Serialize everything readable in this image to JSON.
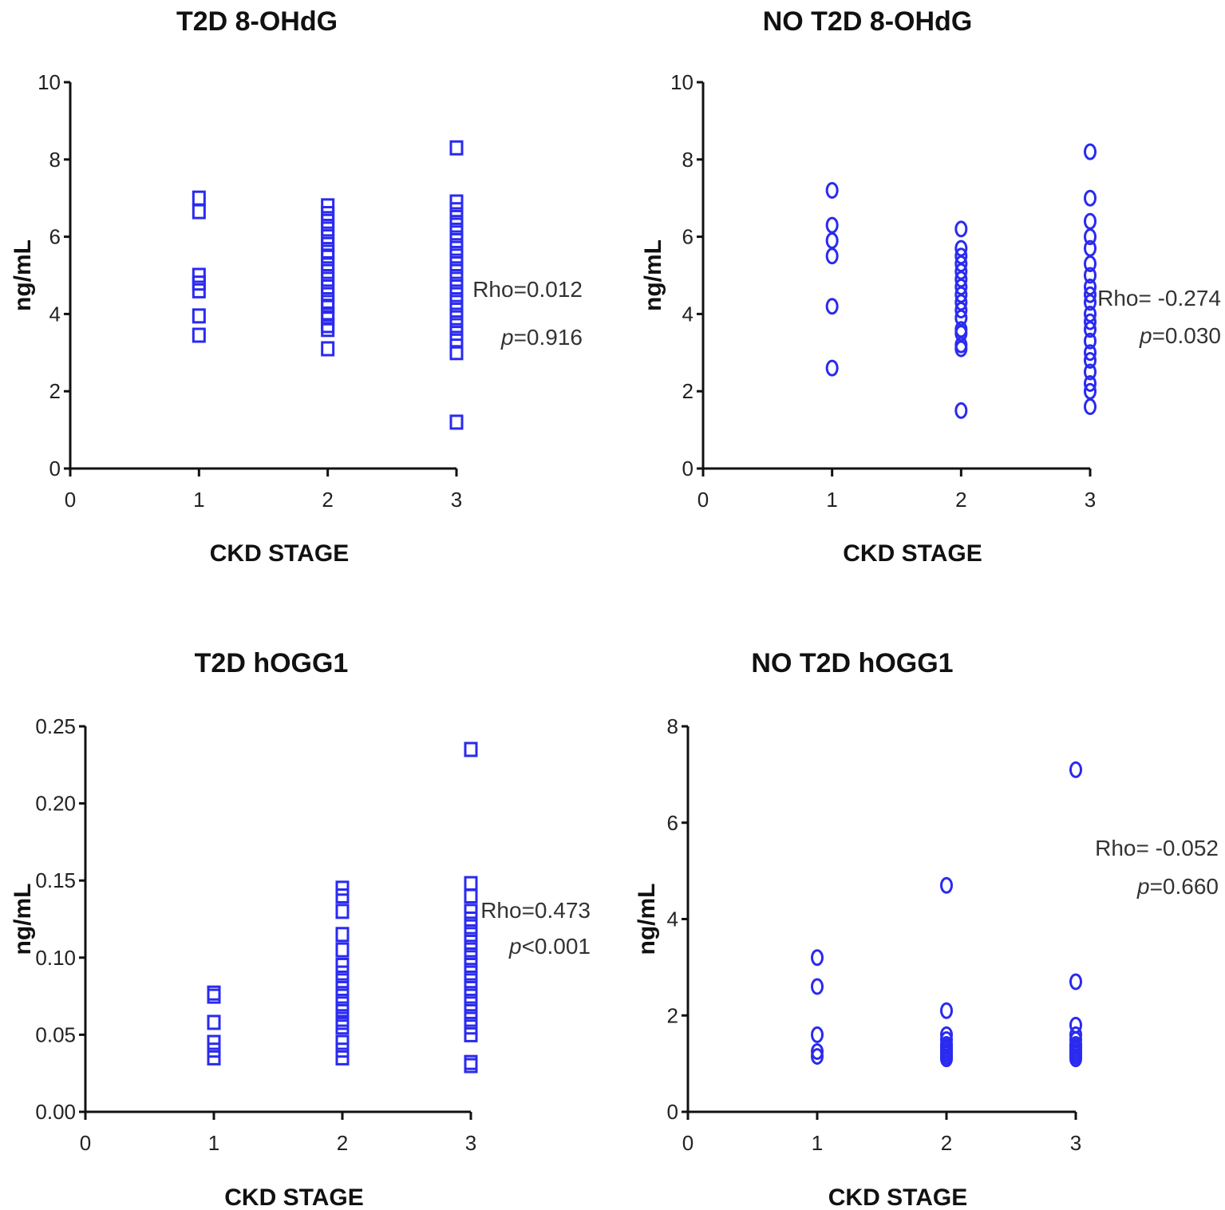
{
  "chart_data": [
    {
      "type": "scatter",
      "title": "T2D 8-OHdG",
      "xlabel": "CKD STAGE",
      "ylabel": "ng/mL",
      "xlim": [
        0,
        3
      ],
      "ylim": [
        0,
        10
      ],
      "xticks": [
        "0",
        "1",
        "2",
        "3"
      ],
      "yticks": [
        "0",
        "2",
        "4",
        "6",
        "8",
        "10"
      ],
      "marker": "square",
      "color": "#2a2af0",
      "series": [
        {
          "x": 1,
          "values": [
            7.0,
            6.65,
            5.0,
            4.8,
            4.6,
            3.95,
            3.45
          ]
        },
        {
          "x": 2,
          "values": [
            6.8,
            6.6,
            6.4,
            6.2,
            6.0,
            5.8,
            5.6,
            5.5,
            5.3,
            5.1,
            4.9,
            4.7,
            4.5,
            4.3,
            4.2,
            4.0,
            3.9,
            3.7,
            3.6,
            3.1
          ]
        },
        {
          "x": 3,
          "values": [
            8.3,
            6.9,
            6.7,
            6.5,
            6.3,
            6.1,
            5.9,
            5.7,
            5.5,
            5.3,
            5.1,
            4.9,
            4.7,
            4.5,
            4.3,
            4.1,
            3.9,
            3.7,
            3.5,
            3.3,
            3.0,
            1.2
          ]
        }
      ],
      "stats": {
        "rho": "Rho=0.012",
        "p_italic": "p",
        "p_value": "=0.916"
      }
    },
    {
      "type": "scatter",
      "title": "NO T2D 8-OHdG",
      "xlabel": "CKD STAGE",
      "ylabel": "ng/mL",
      "xlim": [
        0,
        3
      ],
      "ylim": [
        0,
        10
      ],
      "xticks": [
        "0",
        "1",
        "2",
        "3"
      ],
      "yticks": [
        "0",
        "2",
        "4",
        "6",
        "8",
        "10"
      ],
      "marker": "circle",
      "color": "#2a2af0",
      "series": [
        {
          "x": 1,
          "values": [
            7.2,
            6.3,
            5.9,
            5.5,
            4.2,
            2.6
          ]
        },
        {
          "x": 2,
          "values": [
            6.2,
            5.7,
            5.5,
            5.3,
            5.1,
            4.9,
            4.7,
            4.5,
            4.3,
            4.1,
            3.9,
            3.6,
            3.5,
            3.2,
            3.1,
            1.5
          ]
        },
        {
          "x": 3,
          "values": [
            8.2,
            7.0,
            6.4,
            6.0,
            5.7,
            5.3,
            5.0,
            4.7,
            4.5,
            4.3,
            4.0,
            3.8,
            3.6,
            3.3,
            3.0,
            2.8,
            2.5,
            2.2,
            2.0,
            1.6
          ]
        }
      ],
      "stats": {
        "rho": "Rho= -0.274",
        "p_italic": "p",
        "p_value": "=0.030"
      }
    },
    {
      "type": "scatter",
      "title": "T2D hOGG1",
      "xlabel": "CKD STAGE",
      "ylabel": "ng/mL",
      "xlim": [
        0,
        3
      ],
      "ylim": [
        0,
        0.25
      ],
      "xticks": [
        "0",
        "1",
        "2",
        "3"
      ],
      "yticks": [
        "0.00",
        "0.05",
        "0.10",
        "0.15",
        "0.20",
        "0.25"
      ],
      "marker": "square",
      "color": "#2a2af0",
      "series": [
        {
          "x": 1,
          "values": [
            0.077,
            0.075,
            0.058,
            0.045,
            0.04,
            0.035
          ]
        },
        {
          "x": 2,
          "values": [
            0.145,
            0.14,
            0.13,
            0.115,
            0.105,
            0.095,
            0.09,
            0.085,
            0.08,
            0.075,
            0.07,
            0.065,
            0.06,
            0.058,
            0.055,
            0.045,
            0.04,
            0.035
          ]
        },
        {
          "x": 3,
          "values": [
            0.235,
            0.148,
            0.14,
            0.13,
            0.125,
            0.12,
            0.115,
            0.11,
            0.105,
            0.1,
            0.095,
            0.09,
            0.085,
            0.08,
            0.075,
            0.07,
            0.065,
            0.06,
            0.055,
            0.05,
            0.032,
            0.03
          ]
        }
      ],
      "stats": {
        "rho": "Rho=0.473",
        "p_italic": "p",
        "p_value": "<0.001"
      }
    },
    {
      "type": "scatter",
      "title": "NO T2D hOGG1",
      "xlabel": "CKD STAGE",
      "ylabel": "ng/mL",
      "xlim": [
        0,
        3
      ],
      "ylim": [
        0,
        8
      ],
      "xticks": [
        "0",
        "1",
        "2",
        "3"
      ],
      "yticks": [
        "0",
        "2",
        "4",
        "6",
        "8"
      ],
      "marker": "circle",
      "color": "#2a2af0",
      "series": [
        {
          "x": 1,
          "values": [
            3.2,
            2.6,
            1.6,
            1.25,
            1.15
          ]
        },
        {
          "x": 2,
          "values": [
            4.7,
            2.1,
            1.6,
            1.5,
            1.4,
            1.35,
            1.3,
            1.25,
            1.2,
            1.15,
            1.1
          ]
        },
        {
          "x": 3,
          "values": [
            7.1,
            2.7,
            1.8,
            1.6,
            1.5,
            1.4,
            1.35,
            1.3,
            1.25,
            1.2,
            1.15,
            1.1
          ]
        }
      ],
      "stats": {
        "rho": "Rho= -0.052",
        "p_italic": "p",
        "p_value": "=0.660"
      }
    }
  ]
}
